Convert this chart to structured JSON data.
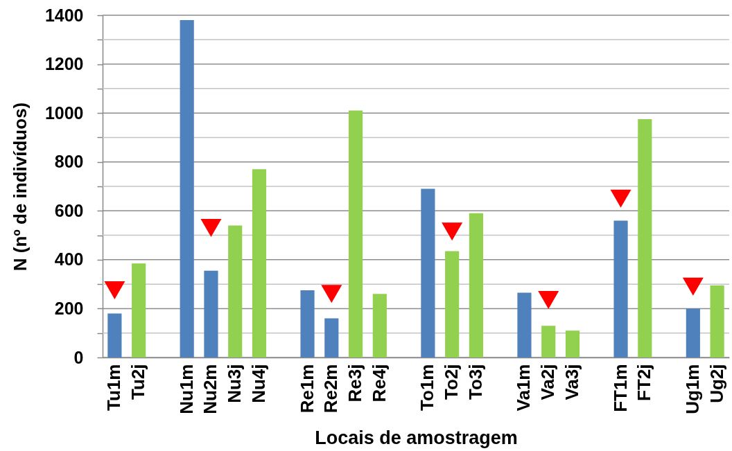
{
  "chart_data": {
    "type": "bar",
    "xlabel": "Locais de amostragem",
    "ylabel": "N (nº de indivíduos)",
    "categories": [
      "Tu1m",
      "Tu2j",
      null,
      "Nu1m",
      "Nu2m",
      "Nu3j",
      "Nu4j",
      null,
      "Re1m",
      "Re2m",
      "Re3j",
      "Re4j",
      null,
      "To1m",
      "To2j",
      "To3j",
      null,
      "Va1m",
      "Va2j",
      "Va3j",
      null,
      "FT1m",
      "FT2j",
      null,
      "Ug1m",
      "Ug2j"
    ],
    "series": [
      {
        "values": [
          180,
          385,
          null,
          1380,
          355,
          540,
          770,
          null,
          275,
          160,
          1010,
          260,
          null,
          690,
          435,
          590,
          null,
          265,
          130,
          110,
          null,
          560,
          975,
          null,
          200,
          295
        ],
        "colors": [
          "#4f81bd",
          "#92d050",
          null,
          "#4f81bd",
          "#4f81bd",
          "#92d050",
          "#92d050",
          null,
          "#4f81bd",
          "#4f81bd",
          "#92d050",
          "#92d050",
          null,
          "#4f81bd",
          "#92d050",
          "#92d050",
          null,
          "#4f81bd",
          "#92d050",
          "#92d050",
          null,
          "#4f81bd",
          "#92d050",
          null,
          "#4f81bd",
          "#92d050"
        ]
      },
      {
        "type": "scatter",
        "color": "#ff0000",
        "marker": "triangle",
        "x": [
          "Tu1m",
          "Nu2m",
          "Re2m",
          "To2j",
          "Va2j",
          "FT1m",
          "Ug1m"
        ],
        "values": [
          275,
          530,
          260,
          515,
          235,
          650,
          290
        ]
      }
    ],
    "ylim": [
      0,
      1400
    ],
    "yticks": [
      0,
      {
        "value": 100,
        "label": null
      },
      200,
      {
        "value": 300,
        "label": null
      },
      400,
      {
        "value": 500,
        "label": null
      },
      600,
      {
        "value": 700,
        "label": null
      },
      800,
      {
        "value": 900,
        "label": null
      },
      1000,
      {
        "value": 1100,
        "label": null
      },
      1200,
      {
        "value": 1300,
        "label": null
      },
      1400
    ],
    "grid": true
  }
}
